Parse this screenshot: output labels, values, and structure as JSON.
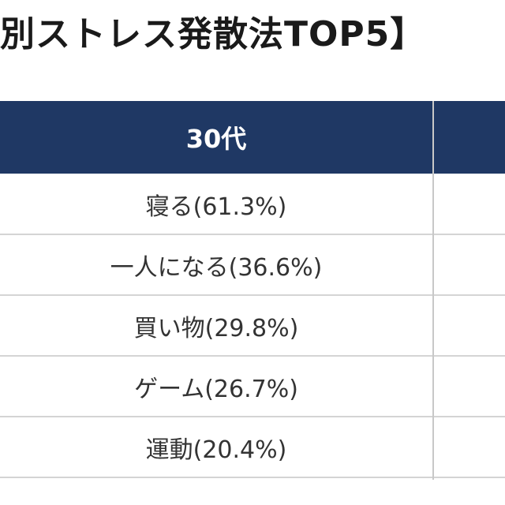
{
  "header": {
    "title": "別ストレス発散法TOP5】"
  },
  "table": {
    "columns": [
      "30代"
    ],
    "rows": [
      [
        "寝る(61.3%)"
      ],
      [
        "一人になる(36.6%)"
      ],
      [
        "買い物(29.8%)"
      ],
      [
        "ゲーム(26.7%)"
      ],
      [
        "運動(20.4%)"
      ]
    ]
  }
}
